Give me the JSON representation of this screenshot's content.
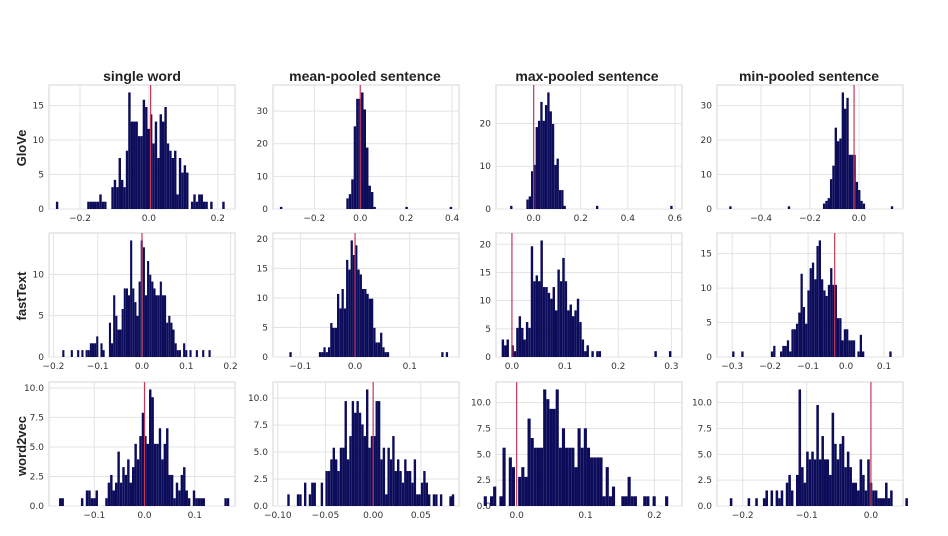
{
  "chart_data": {
    "type": "bar",
    "columns": [
      "single word",
      "mean-pooled sentence",
      "max-pooled sentence",
      "min-pooled sentence"
    ],
    "rows": [
      "GloVe",
      "fastText",
      "word2vec"
    ],
    "colors": {
      "bars": "#0c0c5a",
      "reference_line": "#c8385a",
      "grid": "#e3e3e3"
    },
    "grid": true,
    "panels": [
      {
        "row": 0,
        "col": 0,
        "xlim": [
          -0.29,
          0.25
        ],
        "xticks": [
          -0.2,
          0.0,
          0.2
        ],
        "xtick_labels": [
          "−0.2",
          "0.0",
          "0.2"
        ],
        "ylim": [
          0,
          18
        ],
        "yticks": [
          0,
          5,
          10,
          15
        ],
        "ytick_labels": [
          "0",
          "5",
          "10",
          "15"
        ],
        "vline": 0.005,
        "dist": {
          "mean": 0.005,
          "sd": 0.065,
          "n": 300,
          "seed": 11,
          "outliers": [
            -0.27,
            -0.17,
            0.22
          ]
        }
      },
      {
        "row": 0,
        "col": 1,
        "xlim": [
          -0.38,
          0.43
        ],
        "xticks": [
          -0.2,
          0.0,
          0.2,
          0.4
        ],
        "xtick_labels": [
          "−0.2",
          "0.0",
          "0.2",
          "0.4"
        ],
        "ylim": [
          0,
          38
        ],
        "yticks": [
          0,
          10,
          20,
          30
        ],
        "ytick_labels": [
          "0",
          "10",
          "20",
          "30"
        ],
        "vline": 0.0,
        "dist": {
          "mean": 0.0,
          "sd": 0.022,
          "n": 320,
          "seed": 23,
          "outliers": [
            -0.35,
            0.2,
            0.4
          ]
        }
      },
      {
        "row": 0,
        "col": 2,
        "xlim": [
          -0.16,
          0.63
        ],
        "xticks": [
          0.0,
          0.2,
          0.4,
          0.6
        ],
        "xtick_labels": [
          "0.0",
          "0.2",
          "0.4",
          "0.6"
        ],
        "ylim": [
          0,
          29
        ],
        "yticks": [
          0,
          10,
          20
        ],
        "ytick_labels": [
          "0",
          "10",
          "20"
        ],
        "vline": 0.0,
        "dist": {
          "mean": 0.05,
          "sd": 0.032,
          "n": 320,
          "seed": 37,
          "outliers": [
            -0.1,
            0.27,
            0.59
          ]
        }
      },
      {
        "row": 0,
        "col": 3,
        "xlim": [
          -0.58,
          0.18
        ],
        "xticks": [
          -0.4,
          -0.2,
          0.0
        ],
        "xtick_labels": [
          "−0.4",
          "−0.2",
          "0.0"
        ],
        "ylim": [
          0,
          36
        ],
        "yticks": [
          0,
          10,
          20,
          30
        ],
        "ytick_labels": [
          "0",
          "10",
          "20",
          "30"
        ],
        "vline": -0.02,
        "dist": {
          "mean": -0.06,
          "sd": 0.032,
          "n": 320,
          "seed": 41,
          "outliers": [
            -0.53,
            -0.29,
            0.14
          ]
        }
      },
      {
        "row": 1,
        "col": 0,
        "xlim": [
          -0.21,
          0.21
        ],
        "xticks": [
          -0.2,
          -0.1,
          0.0,
          0.1,
          0.2
        ],
        "xtick_labels": [
          "−0.2",
          "−0.1",
          "0.0",
          "0.1",
          "0.2"
        ],
        "ylim": [
          0,
          15
        ],
        "yticks": [
          0,
          5,
          10
        ],
        "ytick_labels": [
          "0",
          "5",
          "10"
        ],
        "vline": 0.0,
        "dist": {
          "mean": 0.0,
          "sd": 0.05,
          "n": 300,
          "seed": 53,
          "outliers": [
            -0.18,
            -0.16,
            0.155
          ]
        }
      },
      {
        "row": 1,
        "col": 1,
        "xlim": [
          -0.15,
          0.19
        ],
        "xticks": [
          -0.1,
          0.0,
          0.1
        ],
        "xtick_labels": [
          "−0.1",
          "0.0",
          "0.1"
        ],
        "ylim": [
          0,
          21
        ],
        "yticks": [
          0,
          5,
          10,
          15,
          20
        ],
        "ytick_labels": [
          "0",
          "5",
          "10",
          "15",
          "20"
        ],
        "vline": 0.0,
        "dist": {
          "mean": 0.0,
          "sd": 0.025,
          "n": 300,
          "seed": 61,
          "outliers": [
            -0.12,
            0.16,
            0.17
          ]
        }
      },
      {
        "row": 1,
        "col": 2,
        "xlim": [
          -0.03,
          0.32
        ],
        "xticks": [
          0.0,
          0.1,
          0.2,
          0.3
        ],
        "xtick_labels": [
          "0.0",
          "0.1",
          "0.2",
          "0.3"
        ],
        "ylim": [
          0,
          22
        ],
        "yticks": [
          0,
          5,
          10,
          15,
          20
        ],
        "ytick_labels": [
          "0",
          "5",
          "10",
          "15",
          "20"
        ],
        "vline": 0.0,
        "dist": {
          "mean": 0.07,
          "sd": 0.04,
          "n": 300,
          "seed": 71,
          "outliers": [
            -0.01,
            0.27,
            0.3
          ]
        }
      },
      {
        "row": 1,
        "col": 3,
        "xlim": [
          -0.34,
          0.15
        ],
        "xticks": [
          -0.3,
          -0.2,
          -0.1,
          0.0,
          0.1
        ],
        "xtick_labels": [
          "−0.3",
          "−0.2",
          "−0.1",
          "0.0",
          "0.1"
        ],
        "ylim": [
          0,
          18
        ],
        "yticks": [
          0,
          5,
          10,
          15
        ],
        "ytick_labels": [
          "0",
          "5",
          "10",
          "15"
        ],
        "vline": -0.03,
        "dist": {
          "mean": -0.07,
          "sd": 0.045,
          "n": 300,
          "seed": 83,
          "outliers": [
            -0.3,
            -0.27,
            0.12
          ]
        }
      },
      {
        "row": 2,
        "col": 0,
        "xlim": [
          -0.19,
          0.18
        ],
        "xticks": [
          -0.1,
          0.0,
          0.1
        ],
        "xtick_labels": [
          "−0.1",
          "0.0",
          "0.1"
        ],
        "ylim": [
          0,
          10.5
        ],
        "yticks": [
          0,
          2.5,
          5,
          7.5,
          10
        ],
        "ytick_labels": [
          "0.0",
          "2.5",
          "5.0",
          "7.5",
          "10.0"
        ],
        "vline": 0.0,
        "dist": {
          "mean": 0.0,
          "sd": 0.055,
          "n": 220,
          "seed": 97,
          "outliers": [
            -0.17,
            0.16
          ]
        }
      },
      {
        "row": 2,
        "col": 1,
        "xlim": [
          -0.105,
          0.09
        ],
        "xticks": [
          -0.1,
          -0.05,
          0.0,
          0.05
        ],
        "xtick_labels": [
          "−0.10",
          "−0.05",
          "0.00",
          "0.05"
        ],
        "ylim": [
          0,
          11.5
        ],
        "yticks": [
          0,
          2.5,
          5,
          7.5,
          10
        ],
        "ytick_labels": [
          "0.0",
          "2.5",
          "5.0",
          "7.5",
          "10.0"
        ],
        "vline": 0.0,
        "dist": {
          "mean": -0.005,
          "sd": 0.03,
          "n": 220,
          "seed": 101,
          "outliers": [
            -0.09,
            0.085
          ]
        }
      },
      {
        "row": 2,
        "col": 2,
        "xlim": [
          -0.03,
          0.24
        ],
        "xticks": [
          0.0,
          0.1,
          0.2
        ],
        "xtick_labels": [
          "0.0",
          "0.1",
          "0.2"
        ],
        "ylim": [
          0,
          12
        ],
        "yticks": [
          0,
          2.5,
          5,
          7.5,
          10
        ],
        "ytick_labels": [
          "0.0",
          "2.5",
          "5.0",
          "7.5",
          "10.0"
        ],
        "vline": 0.0,
        "dist": {
          "mean": 0.06,
          "sd": 0.045,
          "n": 220,
          "seed": 113,
          "outliers": [
            -0.01,
            0.2,
            0.22
          ]
        }
      },
      {
        "row": 2,
        "col": 3,
        "xlim": [
          -0.24,
          0.05
        ],
        "xticks": [
          -0.2,
          -0.1,
          0.0
        ],
        "xtick_labels": [
          "−0.2",
          "−0.1",
          "0.0"
        ],
        "ylim": [
          0,
          12
        ],
        "yticks": [
          0,
          2.5,
          5,
          7.5,
          10
        ],
        "ytick_labels": [
          "0.0",
          "2.5",
          "5.0",
          "7.5",
          "10.0"
        ],
        "vline": 0.0,
        "dist": {
          "mean": -0.07,
          "sd": 0.045,
          "n": 220,
          "seed": 127,
          "outliers": [
            -0.22,
            0.03
          ]
        }
      }
    ]
  }
}
